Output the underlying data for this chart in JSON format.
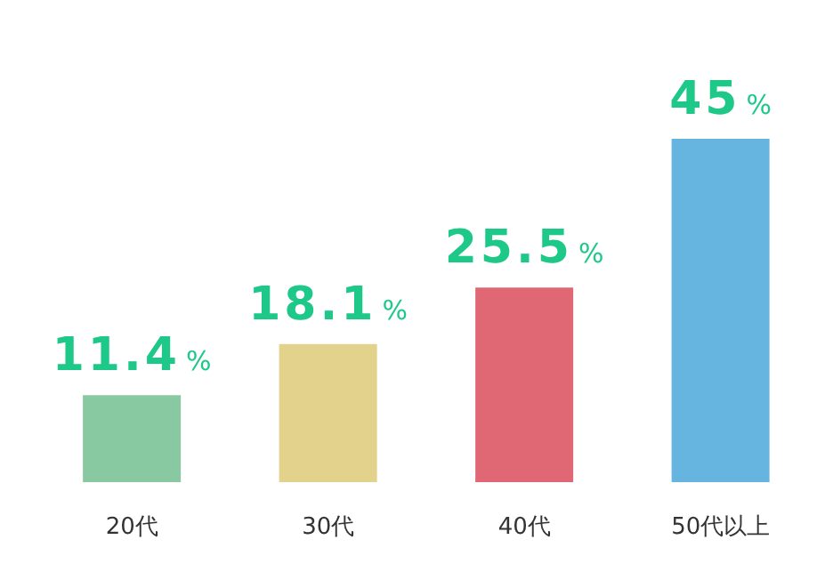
{
  "chart_data": {
    "type": "bar",
    "categories": [
      "20代",
      "30代",
      "40代",
      "50代以上"
    ],
    "values": [
      11.4,
      18.1,
      25.5,
      45
    ],
    "colors": [
      "#88c9a1",
      "#e3d28c",
      "#e06874",
      "#66b5e0"
    ],
    "value_labels": [
      "11.4%",
      "18.1%",
      "25.5%",
      "45%"
    ],
    "grid": false,
    "legend": false
  }
}
